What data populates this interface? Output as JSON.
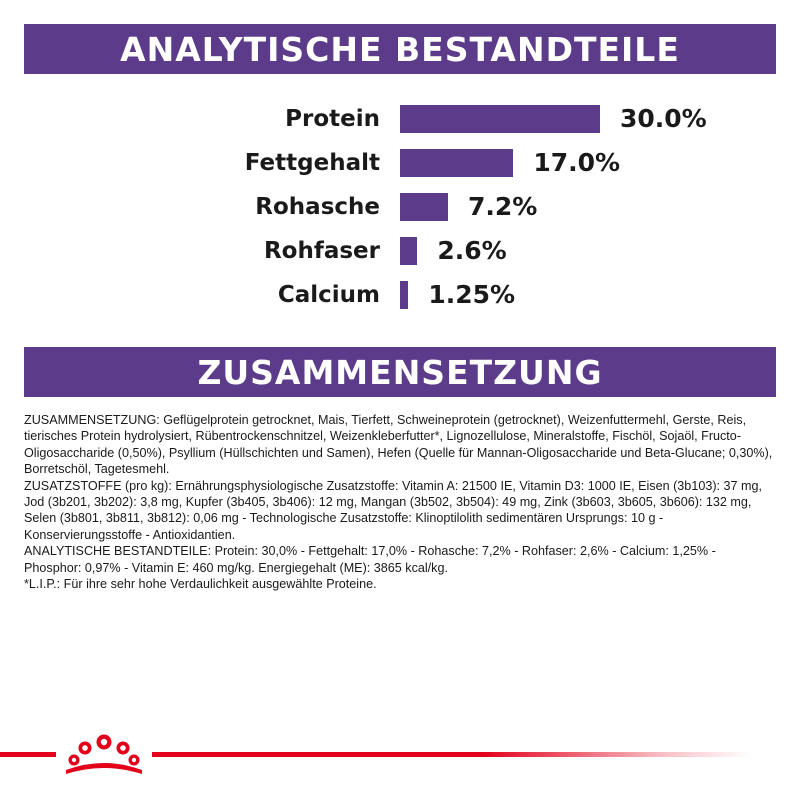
{
  "header": {
    "title": "ANALYTISCHE BESTANDTEILE"
  },
  "nutrients": [
    {
      "label": "Protein",
      "value_label": "30.0%",
      "value": 30.0
    },
    {
      "label": "Fettgehalt",
      "value_label": "17.0%",
      "value": 17.0
    },
    {
      "label": "Rohasche",
      "value_label": "7.2%",
      "value": 7.2
    },
    {
      "label": "Rohfaser",
      "value_label": "2.6%",
      "value": 2.6
    },
    {
      "label": "Calcium",
      "value_label": "1.25%",
      "value": 1.25
    }
  ],
  "chart_data": {
    "type": "bar",
    "orientation": "horizontal",
    "categories": [
      "Protein",
      "Fettgehalt",
      "Rohasche",
      "Rohfaser",
      "Calcium"
    ],
    "values": [
      30.0,
      17.0,
      7.2,
      2.6,
      1.25
    ],
    "title": "ANALYTISCHE BESTANDTEILE",
    "xlabel": "",
    "ylabel": "",
    "grid": false,
    "bar_color": "#5b3b8a"
  },
  "section2": {
    "title": "ZUSAMMENSETZUNG"
  },
  "composition": {
    "paragraphs": [
      "ZUSAMMENSETZUNG: Geflügelprotein getrocknet, Mais, Tierfett, Schweineprotein (getrocknet), Weizenfuttermehl, Gerste, Reis, tierisches Protein hydrolysiert, Rübentrockenschnitzel, Weizenkleberfutter*, Lignozellulose, Mineralstoffe, Fischöl, Sojaöl, Fructo-Oligosaccharide (0,50%), Psyllium (Hüllschichten und Samen), Hefen (Quelle für Mannan-Oligosaccharide und Beta-Glucane; 0,30%), Borretschöl, Tagetesmehl.",
      "ZUSATZSTOFFE (pro kg): Ernährungsphysiologische Zusatzstoffe: Vitamin A: 21500 IE, Vitamin D3: 1000 IE, Eisen (3b103): 37 mg, Jod (3b201, 3b202): 3,8 mg, Kupfer (3b405, 3b406): 12 mg, Mangan (3b502, 3b504): 49 mg, Zink (3b603, 3b605, 3b606): 132 mg, Selen (3b801, 3b811, 3b812): 0,06 mg - Technologische Zusatzstoffe: Klinoptilolith sedimentären Ursprungs: 10 g - Konservierungsstoffe - Antioxidantien.",
      "ANALYTISCHE BESTANDTEILE: Protein: 30,0% - Fettgehalt: 17,0% - Rohasche: 7,2% - Rohfaser: 2,6% - Calcium: 1,25% - Phosphor: 0,97% - Vitamin E: 460 mg/kg. Energiegehalt (ME): 3865 kcal/kg.",
      "*L.I.P.: Für ihre sehr hohe Verdaulichkeit ausgewählte Proteine."
    ]
  },
  "colors": {
    "brand_purple": "#5b3b8a",
    "brand_red": "#e2001a"
  },
  "footer": {
    "logo_icon": "royal-canin-crown-icon"
  }
}
